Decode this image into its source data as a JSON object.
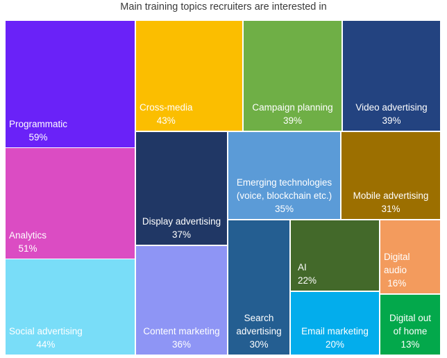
{
  "chart_data": {
    "type": "treemap",
    "title": "Main training topics recruiters are interested in",
    "unit": "%",
    "items": [
      {
        "label": "Programmatic",
        "value": 59,
        "color": "#6a22f8"
      },
      {
        "label": "Analytics",
        "value": 51,
        "color": "#db4cc3"
      },
      {
        "label": "Social advertising",
        "value": 44,
        "color": "#79ddf8"
      },
      {
        "label": "Cross-media",
        "value": 43,
        "color": "#fbbe00"
      },
      {
        "label": "Campaign planning",
        "value": 39,
        "color": "#6faf46"
      },
      {
        "label": "Video advertising",
        "value": 39,
        "color": "#234380"
      },
      {
        "label": "Display advertising",
        "value": 37,
        "color": "#203765"
      },
      {
        "label": "Content marketing",
        "value": 36,
        "color": "#8e95f5"
      },
      {
        "label": "Emerging technologies\n(voice, blockchain etc.)",
        "value": 35,
        "color": "#5b9bd7"
      },
      {
        "label": "Mobile advertising",
        "value": 31,
        "color": "#9c6f00"
      },
      {
        "label": "Search\nadvertising",
        "value": 30,
        "color": "#245e91"
      },
      {
        "label": "AI",
        "value": 22,
        "color": "#43692a"
      },
      {
        "label": "Email marketing",
        "value": 20,
        "color": "#03adec"
      },
      {
        "label": "Digital\naudio",
        "value": 16,
        "color": "#f39b5d"
      },
      {
        "label": "Digital out\nof home",
        "value": 13,
        "color": "#03a84b"
      }
    ]
  }
}
